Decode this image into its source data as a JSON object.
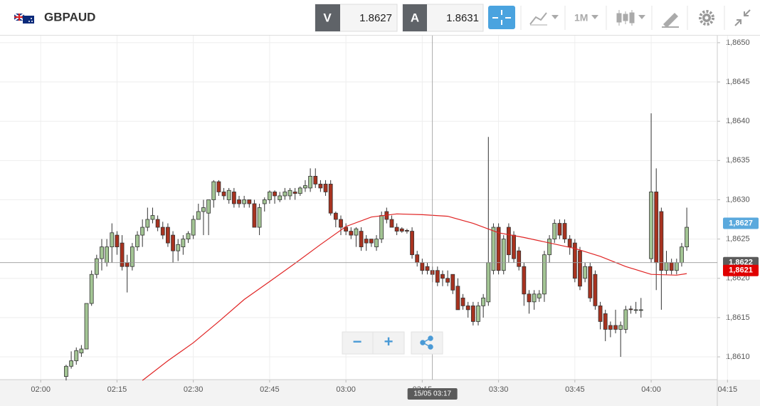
{
  "toolbar": {
    "symbol": "GBPAUD",
    "bid_label": "V",
    "bid": "1.8627",
    "ask_label": "A",
    "ask": "1.8631",
    "timeframe": "1M"
  },
  "zoom": {
    "out": "−",
    "in": "+"
  },
  "chart_data": {
    "type": "candlestick",
    "xlim": [
      "01:52",
      "04:13"
    ],
    "xticks": [
      "02:00",
      "02:15",
      "02:30",
      "02:45",
      "03:00",
      "03:15",
      "03:30",
      "03:45",
      "04:00",
      "04:15"
    ],
    "ylim": [
      1.86071,
      1.86509
    ],
    "yticks": [
      {
        "value": 1.861,
        "label": "1,8610"
      },
      {
        "value": 1.8615,
        "label": "1,8615"
      },
      {
        "value": 1.862,
        "label": "1,8620"
      },
      {
        "value": 1.8625,
        "label": "1,8625"
      },
      {
        "value": 1.863,
        "label": "1,8630"
      },
      {
        "value": 1.8635,
        "label": "1,8635"
      },
      {
        "value": 1.864,
        "label": "1,8640"
      },
      {
        "value": 1.8645,
        "label": "1,8645"
      },
      {
        "value": 1.865,
        "label": "1,8650"
      }
    ],
    "grid": true,
    "up_color": "#a3c594",
    "down_color": "#a8321f",
    "x": [
      "02:05",
      "02:06",
      "02:07",
      "02:08",
      "02:09",
      "02:10",
      "02:11",
      "02:12",
      "02:13",
      "02:14",
      "02:15",
      "02:16",
      "02:17",
      "02:18",
      "02:19",
      "02:20",
      "02:21",
      "02:22",
      "02:23",
      "02:24",
      "02:25",
      "02:26",
      "02:27",
      "02:28",
      "02:29",
      "02:30",
      "02:31",
      "02:32",
      "02:33",
      "02:34",
      "02:35",
      "02:36",
      "02:37",
      "02:38",
      "02:39",
      "02:40",
      "02:41",
      "02:42",
      "02:43",
      "02:44",
      "02:45",
      "02:46",
      "02:47",
      "02:48",
      "02:49",
      "02:50",
      "02:51",
      "02:52",
      "02:53",
      "02:54",
      "02:55",
      "02:56",
      "02:57",
      "02:58",
      "02:59",
      "03:00",
      "03:01",
      "03:02",
      "03:03",
      "03:04",
      "03:05",
      "03:06",
      "03:07",
      "03:08",
      "03:09",
      "03:10",
      "03:11",
      "03:12",
      "03:13",
      "03:14",
      "03:15",
      "03:16",
      "03:17",
      "03:18",
      "03:19",
      "03:20",
      "03:21",
      "03:22",
      "03:23",
      "03:24",
      "03:25",
      "03:26",
      "03:27",
      "03:28",
      "03:29",
      "03:30",
      "03:31",
      "03:32",
      "03:33",
      "03:34",
      "03:35",
      "03:36",
      "03:37",
      "03:38",
      "03:39",
      "03:40",
      "03:41",
      "03:42",
      "03:43",
      "03:44",
      "03:45",
      "03:46",
      "03:47",
      "03:48",
      "03:49",
      "03:50",
      "03:51",
      "03:52",
      "03:53",
      "03:54",
      "03:55",
      "03:56",
      "03:57",
      "03:58",
      "04:00",
      "04:01",
      "04:02",
      "04:03",
      "04:04",
      "04:05",
      "04:06",
      "04:07"
    ],
    "open": [
      1.86075,
      1.86088,
      1.86095,
      1.86105,
      1.8611,
      1.86168,
      1.86205,
      1.86225,
      1.8622,
      1.8624,
      1.86255,
      1.86245,
      1.8622,
      1.86215,
      1.8624,
      1.86255,
      1.86265,
      1.86275,
      1.86275,
      1.86265,
      1.86265,
      1.86255,
      1.86235,
      1.8624,
      1.8625,
      1.86255,
      1.86275,
      1.86285,
      1.86283,
      1.863,
      1.86323,
      1.8631,
      1.863,
      1.8631,
      1.863,
      1.86295,
      1.863,
      1.86295,
      1.86265,
      1.86295,
      1.863,
      1.8631,
      1.863,
      1.86305,
      1.86305,
      1.8631,
      1.86308,
      1.86315,
      1.86315,
      1.8633,
      1.8632,
      1.8632,
      1.8632,
      1.86283,
      1.86275,
      1.86265,
      1.8626,
      1.86255,
      1.8626,
      1.8625,
      1.8625,
      1.8624,
      1.8625,
      1.86285,
      1.86275,
      1.86265,
      1.86263,
      1.86261,
      1.8626,
      1.8623,
      1.8622,
      1.86215,
      1.8621,
      1.8621,
      1.86205,
      1.862,
      1.86205,
      1.8619,
      1.86175,
      1.86165,
      1.86165,
      1.86145,
      1.86165,
      1.8617,
      1.8621,
      1.86265,
      1.8621,
      1.86265,
      1.86255,
      1.86235,
      1.86215,
      1.8618,
      1.8617,
      1.86175,
      1.8618,
      1.8623,
      1.8625,
      1.8627,
      1.8627,
      1.8625,
      1.86245,
      1.86235,
      1.862,
      1.86215,
      1.86205,
      1.86165,
      1.86155,
      1.8614,
      1.8614,
      1.86135,
      1.86135,
      1.86161,
      1.8616,
      1.8616,
      1.86225,
      1.8631,
      1.86285,
      1.8621,
      1.8622,
      1.8621,
      1.8622,
      1.8624
    ],
    "high": [
      1.8609,
      1.86107,
      1.86112,
      1.86115,
      1.86168,
      1.8621,
      1.8623,
      1.8625,
      1.8625,
      1.8627,
      1.8626,
      1.86255,
      1.8623,
      1.86245,
      1.8626,
      1.86275,
      1.8629,
      1.8629,
      1.8628,
      1.86272,
      1.8627,
      1.8626,
      1.8625,
      1.86255,
      1.8626,
      1.8628,
      1.86295,
      1.863,
      1.863,
      1.86325,
      1.86325,
      1.86315,
      1.86315,
      1.86315,
      1.86305,
      1.86305,
      1.863,
      1.863,
      1.86295,
      1.86303,
      1.86312,
      1.86312,
      1.8631,
      1.86315,
      1.86315,
      1.86315,
      1.86317,
      1.86325,
      1.8634,
      1.8634,
      1.86325,
      1.86325,
      1.86325,
      1.86285,
      1.8628,
      1.8627,
      1.86265,
      1.86265,
      1.86265,
      1.86255,
      1.8625,
      1.86255,
      1.86285,
      1.8629,
      1.8628,
      1.8627,
      1.86265,
      1.86263,
      1.86265,
      1.86235,
      1.86225,
      1.8622,
      1.86215,
      1.86215,
      1.8621,
      1.8621,
      1.86205,
      1.862,
      1.8618,
      1.8617,
      1.8617,
      1.8617,
      1.8618,
      1.8638,
      1.8627,
      1.8627,
      1.86255,
      1.8627,
      1.8626,
      1.8624,
      1.8622,
      1.86185,
      1.86185,
      1.86185,
      1.86235,
      1.86255,
      1.86275,
      1.86275,
      1.86275,
      1.86255,
      1.8625,
      1.8624,
      1.8622,
      1.8622,
      1.8621,
      1.8617,
      1.8616,
      1.86145,
      1.8616,
      1.86145,
      1.86165,
      1.86165,
      1.8617,
      1.86175,
      1.8641,
      1.8634,
      1.8629,
      1.86235,
      1.86225,
      1.86225,
      1.86245,
      1.8629
    ],
    "low": [
      1.8607,
      1.86085,
      1.8609,
      1.861,
      1.8611,
      1.86165,
      1.862,
      1.8621,
      1.86215,
      1.8622,
      1.8623,
      1.8621,
      1.86182,
      1.8621,
      1.86235,
      1.8624,
      1.8626,
      1.8627,
      1.8626,
      1.8625,
      1.8624,
      1.8622,
      1.86222,
      1.8623,
      1.86245,
      1.8625,
      1.86275,
      1.86255,
      1.86255,
      1.8629,
      1.86305,
      1.863,
      1.86295,
      1.8629,
      1.8629,
      1.8629,
      1.8629,
      1.86265,
      1.86255,
      1.86285,
      1.86295,
      1.86295,
      1.86297,
      1.863,
      1.863,
      1.863,
      1.86305,
      1.8631,
      1.8631,
      1.86315,
      1.8631,
      1.86305,
      1.8628,
      1.86265,
      1.86255,
      1.86255,
      1.8625,
      1.8624,
      1.86235,
      1.86235,
      1.8624,
      1.86235,
      1.86245,
      1.8627,
      1.86265,
      1.86255,
      1.86258,
      1.86257,
      1.86225,
      1.86215,
      1.86205,
      1.86205,
      1.86195,
      1.8619,
      1.8619,
      1.8619,
      1.8618,
      1.8616,
      1.8616,
      1.8615,
      1.8614,
      1.8614,
      1.8615,
      1.86165,
      1.86205,
      1.86205,
      1.86205,
      1.8622,
      1.8622,
      1.8621,
      1.86165,
      1.86155,
      1.8616,
      1.8617,
      1.8617,
      1.8622,
      1.86245,
      1.8625,
      1.86245,
      1.8623,
      1.86195,
      1.86185,
      1.86195,
      1.8617,
      1.8616,
      1.86135,
      1.8612,
      1.86125,
      1.8613,
      1.861,
      1.8613,
      1.86155,
      1.86155,
      1.8615,
      1.8622,
      1.86185,
      1.8616,
      1.86205,
      1.86205,
      1.86205,
      1.86215,
      1.86235
    ],
    "close": [
      1.86088,
      1.86095,
      1.86108,
      1.8611,
      1.86168,
      1.86205,
      1.86225,
      1.8624,
      1.8624,
      1.86258,
      1.8624,
      1.86215,
      1.86215,
      1.8624,
      1.86255,
      1.86265,
      1.86275,
      1.8628,
      1.86265,
      1.86255,
      1.86245,
      1.86235,
      1.86243,
      1.8625,
      1.86257,
      1.86275,
      1.86285,
      1.8629,
      1.863,
      1.86323,
      1.8631,
      1.86305,
      1.86312,
      1.86295,
      1.86295,
      1.863,
      1.86295,
      1.86265,
      1.8629,
      1.863,
      1.8631,
      1.86305,
      1.86305,
      1.8631,
      1.86312,
      1.86308,
      1.86315,
      1.86318,
      1.8633,
      1.8632,
      1.86315,
      1.8631,
      1.86283,
      1.86275,
      1.86265,
      1.8626,
      1.86255,
      1.86263,
      1.8624,
      1.86245,
      1.86245,
      1.8625,
      1.8628,
      1.86275,
      1.86265,
      1.8626,
      1.8626,
      1.8626,
      1.8623,
      1.8622,
      1.8621,
      1.8621,
      1.86205,
      1.86195,
      1.862,
      1.86195,
      1.86185,
      1.8616,
      1.86165,
      1.8616,
      1.86145,
      1.86165,
      1.86175,
      1.8622,
      1.86265,
      1.8621,
      1.8625,
      1.8623,
      1.86225,
      1.86215,
      1.8618,
      1.8617,
      1.8618,
      1.8618,
      1.8623,
      1.8625,
      1.8627,
      1.86255,
      1.8625,
      1.8624,
      1.862,
      1.8619,
      1.86215,
      1.86175,
      1.86165,
      1.86145,
      1.86135,
      1.86135,
      1.86135,
      1.8614,
      1.8616,
      1.8616,
      1.8616,
      1.8616,
      1.8631,
      1.8622,
      1.8621,
      1.8622,
      1.8621,
      1.8622,
      1.8624,
      1.86265
    ],
    "moving_average": {
      "color": "#e02424",
      "x": [
        "02:20",
        "02:25",
        "02:30",
        "02:35",
        "02:40",
        "02:45",
        "02:50",
        "02:55",
        "03:00",
        "03:05",
        "03:10",
        "03:15",
        "03:20",
        "03:25",
        "03:30",
        "03:35",
        "03:40",
        "03:45",
        "03:50",
        "03:55",
        "04:00",
        "04:05",
        "04:07"
      ],
      "values": [
        1.8607,
        1.86095,
        1.86118,
        1.86145,
        1.86173,
        1.86196,
        1.86219,
        1.86243,
        1.86266,
        1.86278,
        1.86282,
        1.86281,
        1.86279,
        1.8627,
        1.86258,
        1.86252,
        1.86245,
        1.86238,
        1.86228,
        1.86215,
        1.86205,
        1.86204,
        1.86206
      ]
    },
    "price_tags": [
      {
        "value": 1.8627,
        "label": "1,8627",
        "color": "#5aa9dd"
      },
      {
        "value": 1.8621,
        "label": "1,8621",
        "color": "#e00000"
      }
    ],
    "crosshair": {
      "time_label": "15/05 03:17",
      "price": {
        "value": 1.8622,
        "label": "1,8622"
      },
      "color": "#5b5b5b"
    }
  }
}
